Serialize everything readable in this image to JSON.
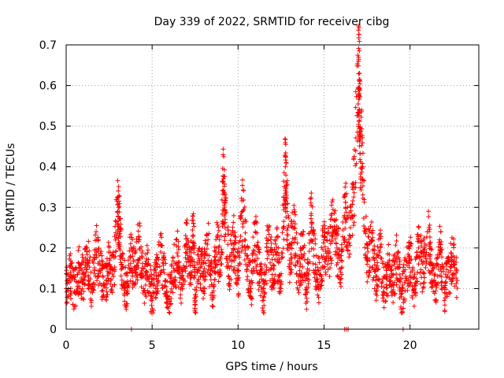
{
  "chart_data": {
    "type": "scatter",
    "title": "Day 339 of 2022, SRMTID for receiver cibg",
    "xlabel": "GPS time / hours",
    "ylabel": "SRMTID / TECUs",
    "xlim": [
      0,
      24
    ],
    "ylim": [
      0,
      0.7
    ],
    "xticks": [
      0,
      5,
      10,
      15,
      20
    ],
    "yticks": [
      0,
      0.1,
      0.2,
      0.3,
      0.4,
      0.5,
      0.6,
      0.7
    ],
    "grid": true,
    "marker": "+",
    "color": "#ff0000",
    "series": [
      {
        "name": "SRMTID",
        "x": [
          0.0,
          0.25,
          0.5,
          0.75,
          1.0,
          1.25,
          1.5,
          1.75,
          2.0,
          2.25,
          2.5,
          2.75,
          3.0,
          3.1,
          3.25,
          3.5,
          3.75,
          4.0,
          4.25,
          4.5,
          4.75,
          5.0,
          5.25,
          5.5,
          5.75,
          6.0,
          6.25,
          6.5,
          6.75,
          7.0,
          7.25,
          7.4,
          7.5,
          7.75,
          8.0,
          8.25,
          8.5,
          8.75,
          9.0,
          9.15,
          9.25,
          9.5,
          9.75,
          10.0,
          10.25,
          10.5,
          10.75,
          11.0,
          11.25,
          11.5,
          11.75,
          12.0,
          12.25,
          12.5,
          12.75,
          12.8,
          13.0,
          13.25,
          13.5,
          13.75,
          14.0,
          14.25,
          14.5,
          14.75,
          15.0,
          15.25,
          15.5,
          15.75,
          16.0,
          16.25,
          16.5,
          16.75,
          17.0,
          17.05,
          17.1,
          17.25,
          17.5,
          17.75,
          18.0,
          18.25,
          18.5,
          18.75,
          19.0,
          19.25,
          19.5,
          19.75,
          20.0,
          20.25,
          20.5,
          20.75,
          21.0,
          21.25,
          21.5,
          21.75,
          22.0,
          22.25,
          22.5,
          22.75
        ],
        "y": [
          0.1,
          0.13,
          0.09,
          0.15,
          0.12,
          0.17,
          0.1,
          0.19,
          0.14,
          0.11,
          0.16,
          0.13,
          0.29,
          0.25,
          0.15,
          0.09,
          0.18,
          0.14,
          0.22,
          0.1,
          0.16,
          0.07,
          0.13,
          0.19,
          0.12,
          0.08,
          0.15,
          0.18,
          0.1,
          0.21,
          0.14,
          0.26,
          0.07,
          0.17,
          0.13,
          0.22,
          0.09,
          0.2,
          0.16,
          0.37,
          0.27,
          0.15,
          0.21,
          0.12,
          0.29,
          0.18,
          0.1,
          0.24,
          0.14,
          0.08,
          0.22,
          0.15,
          0.19,
          0.11,
          0.4,
          0.33,
          0.17,
          0.25,
          0.13,
          0.2,
          0.09,
          0.28,
          0.16,
          0.11,
          0.22,
          0.18,
          0.25,
          0.2,
          0.15,
          0.3,
          0.23,
          0.35,
          0.66,
          0.58,
          0.47,
          0.4,
          0.16,
          0.22,
          0.12,
          0.19,
          0.09,
          0.15,
          0.11,
          0.18,
          0.08,
          0.13,
          0.17,
          0.1,
          0.2,
          0.14,
          0.24,
          0.16,
          0.11,
          0.19,
          0.09,
          0.14,
          0.17,
          0.12
        ],
        "zero_markers_x": [
          3.8,
          16.2,
          16.3,
          16.4,
          19.6
        ]
      }
    ]
  }
}
